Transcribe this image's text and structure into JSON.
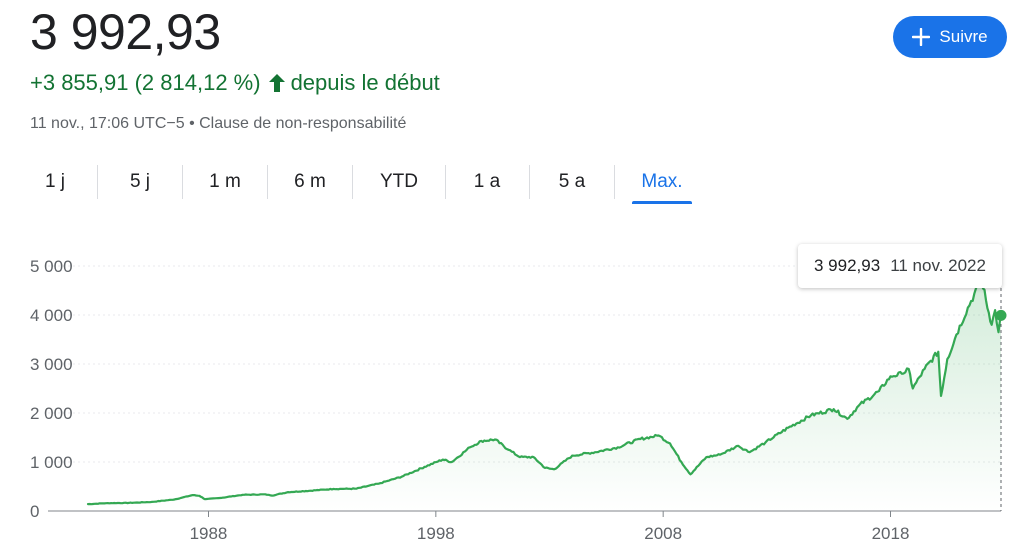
{
  "quote": {
    "price": "3 992,93",
    "change": "+3 855,91 (2 814,12 %)",
    "change_suffix": "depuis le début",
    "timestamp": "11 nov., 17:06 UTC−5",
    "separator": "•",
    "disclaimer": "Clause de non-responsabilité"
  },
  "follow_button": {
    "label": "Suivre",
    "icon": "plus-icon"
  },
  "tabs": [
    {
      "label": "1 j"
    },
    {
      "label": "5 j"
    },
    {
      "label": "1 m"
    },
    {
      "label": "6 m"
    },
    {
      "label": "YTD"
    },
    {
      "label": "1 a"
    },
    {
      "label": "5 a"
    },
    {
      "label": "Max.",
      "active": true
    }
  ],
  "tooltip": {
    "value": "3 992,93",
    "date": "11 nov. 2022"
  },
  "colors": {
    "line": "#34a853",
    "positive_text": "#137333",
    "accent": "#1a73e8",
    "grid": "#e8eaed",
    "axis_text": "#5f6368"
  },
  "chart_data": {
    "type": "area",
    "ylim": [
      0,
      5000
    ],
    "xlim": [
      1982.7,
      2022.86
    ],
    "yticks": [
      0,
      1000,
      2000,
      3000,
      4000,
      5000
    ],
    "ytick_labels": [
      "0",
      "1 000",
      "2 000",
      "3 000",
      "4 000",
      "5 000"
    ],
    "xticks": [
      1988,
      1998,
      2008,
      2018
    ],
    "xtick_labels": [
      "1988",
      "1998",
      "2008",
      "2018"
    ],
    "grid": true,
    "series": [
      {
        "x": [
          1982.7,
          1983.5,
          1984.5,
          1985.5,
          1986.5,
          1987.3,
          1987.6,
          1987.85,
          1988.5,
          1989.5,
          1990.5,
          1990.8,
          1991.5,
          1992.5,
          1993.5,
          1994.5,
          1995.5,
          1996.5,
          1997.5,
          1998.3,
          1998.7,
          1999.5,
          2000.0,
          2000.6,
          2001.2,
          2001.7,
          2002.3,
          2002.8,
          2003.2,
          2004.0,
          2005.0,
          2006.0,
          2007.0,
          2007.8,
          2008.3,
          2008.8,
          2009.2,
          2009.9,
          2010.5,
          2011.3,
          2011.8,
          2012.5,
          2013.5,
          2014.5,
          2015.5,
          2016.1,
          2016.6,
          2017.5,
          2018.0,
          2018.5,
          2018.8,
          2018.98,
          2019.5,
          2020.1,
          2020.22,
          2020.5,
          2020.9,
          2021.4,
          2021.9,
          2022.0,
          2022.2,
          2022.45,
          2022.6,
          2022.75,
          2022.86
        ],
        "y": [
          140,
          160,
          165,
          185,
          235,
          325,
          310,
          240,
          265,
          330,
          340,
          315,
          385,
          415,
          450,
          455,
          560,
          700,
          900,
          1050,
          1000,
          1300,
          1430,
          1460,
          1250,
          1100,
          1100,
          880,
          850,
          1130,
          1200,
          1300,
          1470,
          1540,
          1380,
          1000,
          750,
          1100,
          1150,
          1330,
          1200,
          1400,
          1700,
          1950,
          2080,
          1880,
          2150,
          2450,
          2750,
          2800,
          2900,
          2500,
          2900,
          3250,
          2350,
          3100,
          3600,
          4150,
          4620,
          4750,
          4300,
          3800,
          4100,
          3650,
          3993
        ]
      }
    ]
  }
}
